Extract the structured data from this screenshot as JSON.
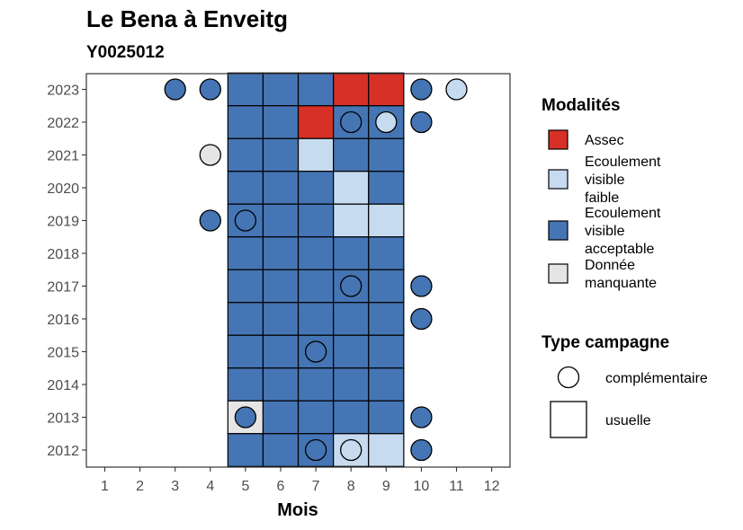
{
  "chart_data": {
    "type": "heatmap",
    "title": "Le Bena à Enveitg",
    "subtitle": "Y0025012",
    "xlabel": "Mois",
    "ylabel": "",
    "x_ticks": [
      "1",
      "2",
      "3",
      "4",
      "5",
      "6",
      "7",
      "8",
      "9",
      "10",
      "11",
      "12"
    ],
    "y_ticks": [
      "2012",
      "2013",
      "2014",
      "2015",
      "2016",
      "2017",
      "2018",
      "2019",
      "2020",
      "2021",
      "2022",
      "2023"
    ],
    "grid": false,
    "legend_position": "right",
    "colors": {
      "assec": "#d73027",
      "faible": "#c6dbef",
      "acceptable": "#4575b4",
      "manquante": "#e5e5e5"
    },
    "legend_modalites": {
      "title": "Modalités",
      "items": [
        {
          "key": "assec",
          "lines": [
            "Assec"
          ]
        },
        {
          "key": "faible",
          "lines": [
            "Ecoulement",
            "visible",
            "faible"
          ]
        },
        {
          "key": "acceptable",
          "lines": [
            "Ecoulement",
            "visible",
            "acceptable"
          ]
        },
        {
          "key": "manquante",
          "lines": [
            "Donnée",
            "manquante"
          ]
        }
      ]
    },
    "legend_campagne": {
      "title": "Type campagne",
      "items": [
        {
          "shape": "circle",
          "label": "complémentaire"
        },
        {
          "shape": "square",
          "label": "usuelle"
        }
      ]
    },
    "usuelle": [
      {
        "year": 2023,
        "month": 5,
        "mod": "acceptable"
      },
      {
        "year": 2023,
        "month": 6,
        "mod": "acceptable"
      },
      {
        "year": 2023,
        "month": 7,
        "mod": "acceptable"
      },
      {
        "year": 2023,
        "month": 8,
        "mod": "assec"
      },
      {
        "year": 2023,
        "month": 9,
        "mod": "assec"
      },
      {
        "year": 2022,
        "month": 5,
        "mod": "acceptable"
      },
      {
        "year": 2022,
        "month": 6,
        "mod": "acceptable"
      },
      {
        "year": 2022,
        "month": 7,
        "mod": "assec"
      },
      {
        "year": 2022,
        "month": 8,
        "mod": "acceptable"
      },
      {
        "year": 2022,
        "month": 9,
        "mod": "acceptable"
      },
      {
        "year": 2021,
        "month": 5,
        "mod": "acceptable"
      },
      {
        "year": 2021,
        "month": 6,
        "mod": "acceptable"
      },
      {
        "year": 2021,
        "month": 7,
        "mod": "faible"
      },
      {
        "year": 2021,
        "month": 8,
        "mod": "acceptable"
      },
      {
        "year": 2021,
        "month": 9,
        "mod": "acceptable"
      },
      {
        "year": 2020,
        "month": 5,
        "mod": "acceptable"
      },
      {
        "year": 2020,
        "month": 6,
        "mod": "acceptable"
      },
      {
        "year": 2020,
        "month": 7,
        "mod": "acceptable"
      },
      {
        "year": 2020,
        "month": 8,
        "mod": "faible"
      },
      {
        "year": 2020,
        "month": 9,
        "mod": "acceptable"
      },
      {
        "year": 2019,
        "month": 5,
        "mod": "acceptable"
      },
      {
        "year": 2019,
        "month": 6,
        "mod": "acceptable"
      },
      {
        "year": 2019,
        "month": 7,
        "mod": "acceptable"
      },
      {
        "year": 2019,
        "month": 8,
        "mod": "faible"
      },
      {
        "year": 2019,
        "month": 9,
        "mod": "faible"
      },
      {
        "year": 2018,
        "month": 5,
        "mod": "acceptable"
      },
      {
        "year": 2018,
        "month": 6,
        "mod": "acceptable"
      },
      {
        "year": 2018,
        "month": 7,
        "mod": "acceptable"
      },
      {
        "year": 2018,
        "month": 8,
        "mod": "acceptable"
      },
      {
        "year": 2018,
        "month": 9,
        "mod": "acceptable"
      },
      {
        "year": 2017,
        "month": 5,
        "mod": "acceptable"
      },
      {
        "year": 2017,
        "month": 6,
        "mod": "acceptable"
      },
      {
        "year": 2017,
        "month": 7,
        "mod": "acceptable"
      },
      {
        "year": 2017,
        "month": 8,
        "mod": "acceptable"
      },
      {
        "year": 2017,
        "month": 9,
        "mod": "acceptable"
      },
      {
        "year": 2016,
        "month": 5,
        "mod": "acceptable"
      },
      {
        "year": 2016,
        "month": 6,
        "mod": "acceptable"
      },
      {
        "year": 2016,
        "month": 7,
        "mod": "acceptable"
      },
      {
        "year": 2016,
        "month": 8,
        "mod": "acceptable"
      },
      {
        "year": 2016,
        "month": 9,
        "mod": "acceptable"
      },
      {
        "year": 2015,
        "month": 5,
        "mod": "acceptable"
      },
      {
        "year": 2015,
        "month": 6,
        "mod": "acceptable"
      },
      {
        "year": 2015,
        "month": 7,
        "mod": "acceptable"
      },
      {
        "year": 2015,
        "month": 8,
        "mod": "acceptable"
      },
      {
        "year": 2015,
        "month": 9,
        "mod": "acceptable"
      },
      {
        "year": 2014,
        "month": 5,
        "mod": "acceptable"
      },
      {
        "year": 2014,
        "month": 6,
        "mod": "acceptable"
      },
      {
        "year": 2014,
        "month": 7,
        "mod": "acceptable"
      },
      {
        "year": 2014,
        "month": 8,
        "mod": "acceptable"
      },
      {
        "year": 2014,
        "month": 9,
        "mod": "acceptable"
      },
      {
        "year": 2013,
        "month": 5,
        "mod": "manquante"
      },
      {
        "year": 2013,
        "month": 6,
        "mod": "acceptable"
      },
      {
        "year": 2013,
        "month": 7,
        "mod": "acceptable"
      },
      {
        "year": 2013,
        "month": 8,
        "mod": "acceptable"
      },
      {
        "year": 2013,
        "month": 9,
        "mod": "acceptable"
      },
      {
        "year": 2012,
        "month": 5,
        "mod": "acceptable"
      },
      {
        "year": 2012,
        "month": 6,
        "mod": "acceptable"
      },
      {
        "year": 2012,
        "month": 7,
        "mod": "acceptable"
      },
      {
        "year": 2012,
        "month": 8,
        "mod": "faible"
      },
      {
        "year": 2012,
        "month": 9,
        "mod": "faible"
      }
    ],
    "complementaire": [
      {
        "year": 2023,
        "month": 3,
        "mod": "acceptable"
      },
      {
        "year": 2023,
        "month": 4,
        "mod": "acceptable"
      },
      {
        "year": 2023,
        "month": 10,
        "mod": "acceptable"
      },
      {
        "year": 2023,
        "month": 11,
        "mod": "faible"
      },
      {
        "year": 2022,
        "month": 8,
        "mod": "acceptable"
      },
      {
        "year": 2022,
        "month": 9,
        "mod": "faible"
      },
      {
        "year": 2022,
        "month": 10,
        "mod": "acceptable"
      },
      {
        "year": 2021,
        "month": 4,
        "mod": "manquante"
      },
      {
        "year": 2019,
        "month": 4,
        "mod": "acceptable"
      },
      {
        "year": 2019,
        "month": 5,
        "mod": "acceptable"
      },
      {
        "year": 2017,
        "month": 8,
        "mod": "acceptable"
      },
      {
        "year": 2017,
        "month": 10,
        "mod": "acceptable"
      },
      {
        "year": 2016,
        "month": 10,
        "mod": "acceptable"
      },
      {
        "year": 2015,
        "month": 7,
        "mod": "acceptable"
      },
      {
        "year": 2013,
        "month": 5,
        "mod": "acceptable"
      },
      {
        "year": 2013,
        "month": 10,
        "mod": "acceptable"
      },
      {
        "year": 2012,
        "month": 7,
        "mod": "acceptable"
      },
      {
        "year": 2012,
        "month": 8,
        "mod": "faible"
      },
      {
        "year": 2012,
        "month": 10,
        "mod": "acceptable"
      }
    ]
  }
}
